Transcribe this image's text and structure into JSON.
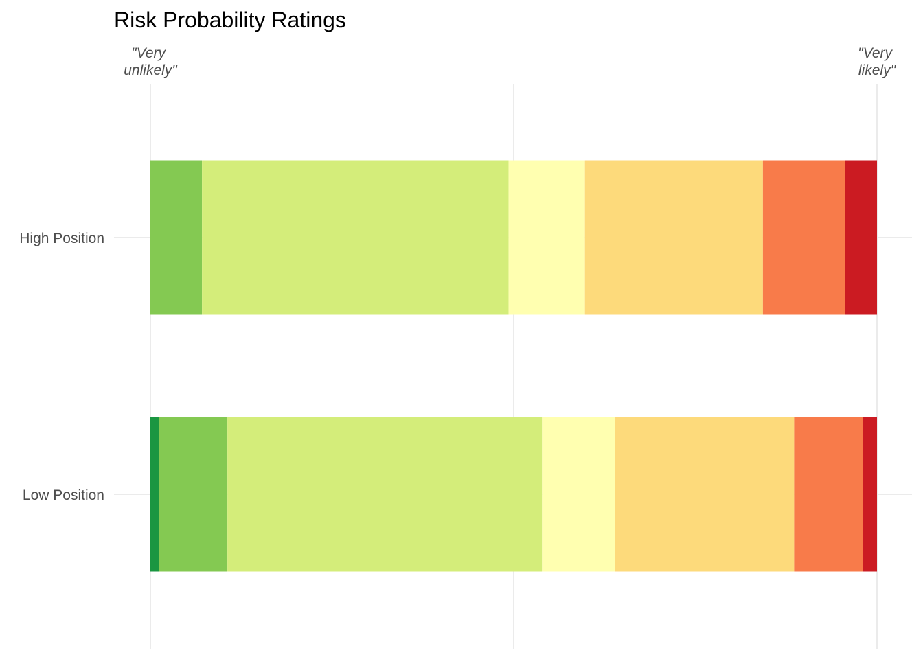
{
  "chart_data": {
    "type": "bar",
    "orientation": "horizontal",
    "stacked": true,
    "normalized": true,
    "title": "Risk Probability Ratings",
    "xlabel": "",
    "ylabel": "",
    "xlim": [
      0,
      1
    ],
    "grid": true,
    "legend": "none",
    "categories": [
      "High Position",
      "Low Position"
    ],
    "annotations": {
      "left": [
        "\"Very",
        "unlikely\""
      ],
      "right": [
        "\"Very",
        "likely\""
      ]
    },
    "series": [
      {
        "color": "#1a9641",
        "values": [
          0.0,
          0.012
        ]
      },
      {
        "color": "#84c952",
        "values": [
          0.071,
          0.094
        ]
      },
      {
        "color": "#d4ed7a",
        "values": [
          0.422,
          0.433
        ]
      },
      {
        "color": "#ffffb0",
        "values": [
          0.105,
          0.1
        ]
      },
      {
        "color": "#fdda7b",
        "values": [
          0.245,
          0.247
        ]
      },
      {
        "color": "#f87b4a",
        "values": [
          0.113,
          0.095
        ]
      },
      {
        "color": "#cb1b22",
        "values": [
          0.044,
          0.019
        ]
      }
    ]
  }
}
